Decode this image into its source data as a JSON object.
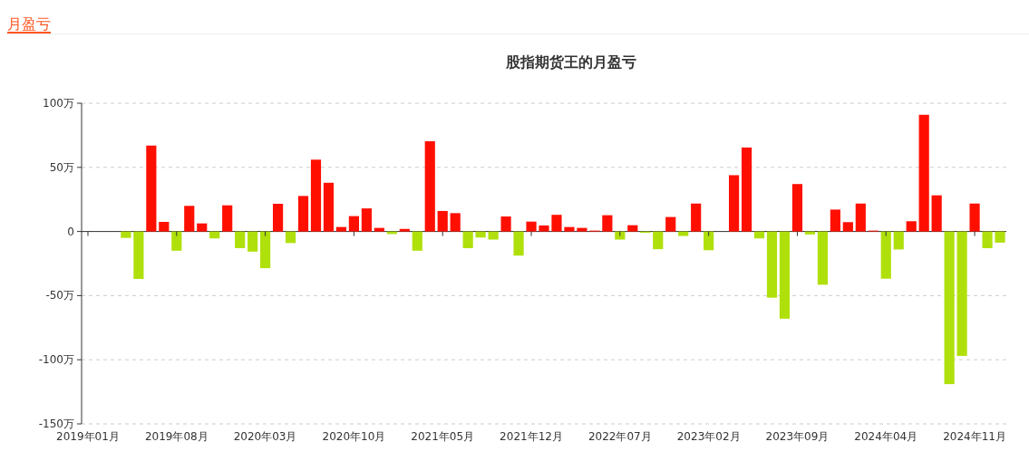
{
  "chart_data": {
    "type": "bar",
    "title": "股指期货王的月盈亏",
    "annotations": [
      "月盈亏"
    ],
    "categories": [
      "2019年01月",
      null,
      null,
      null,
      null,
      null,
      null,
      "2019年08月",
      null,
      null,
      null,
      null,
      null,
      null,
      "2020年03月",
      null,
      null,
      null,
      null,
      null,
      null,
      "2020年10月",
      null,
      null,
      null,
      null,
      null,
      null,
      "2021年05月",
      null,
      null,
      null,
      null,
      null,
      null,
      "2021年12月",
      null,
      null,
      null,
      null,
      null,
      null,
      "2022年07月",
      null,
      null,
      null,
      null,
      null,
      null,
      "2023年02月",
      null,
      null,
      null,
      null,
      null,
      null,
      "2023年09月",
      null,
      null,
      null,
      null,
      null,
      null,
      "2024年04月",
      null,
      null,
      null,
      null,
      null,
      null,
      "2024年11月",
      null,
      null
    ],
    "values": [
      null,
      null,
      null,
      -5,
      -37,
      67,
      7.5,
      -15,
      20,
      6.3,
      -5.4,
      20.4,
      -13,
      -15.7,
      -28.6,
      21.6,
      -9,
      27.7,
      56,
      38,
      3.5,
      12,
      18,
      2.8,
      -2,
      2,
      -15,
      70.4,
      16,
      14.3,
      -13,
      -4.7,
      -6.3,
      11.7,
      -18.8,
      7.7,
      4.7,
      13,
      3.5,
      2.8,
      0.7,
      12.7,
      -6.3,
      4.9,
      -1,
      -13.8,
      11.3,
      -3.5,
      21.8,
      -14.6,
      0,
      43.9,
      65.5,
      -5.4,
      -51.6,
      -68,
      37,
      -2.3,
      -41.5,
      17.1,
      7.3,
      21.8,
      0.7,
      -36.8,
      -14,
      8,
      91,
      28.2,
      -119,
      -97,
      21.8,
      -13,
      -8.7
    ],
    "colors": [
      null,
      null,
      null,
      "#b0e00b",
      "#b0e00b",
      "#ff0f00",
      "#ff0f00",
      "#b0e00b",
      "#ff0f00",
      "#ff0f00",
      "#b0e00b",
      "#ff0f00",
      "#b0e00b",
      "#b0e00b",
      "#b0e00b",
      "#ff0f00",
      "#b0e00b",
      "#ff0f00",
      "#ff0f00",
      "#ff0f00",
      "#ff0f00",
      "#ff0f00",
      "#ff0f00",
      "#ff0f00",
      "#b0e00b",
      "#ff0f00",
      "#b0e00b",
      "#ff0f00",
      "#ff0f00",
      "#ff0f00",
      "#b0e00b",
      "#b0e00b",
      "#b0e00b",
      "#ff0f00",
      "#b0e00b",
      "#ff0f00",
      "#ff0f00",
      "#ff0f00",
      "#ff0f00",
      "#ff0f00",
      "#ff0f00",
      "#ff0f00",
      "#b0e00b",
      "#ff0f00",
      "#b0e00b",
      "#b0e00b",
      "#ff0f00",
      "#b0e00b",
      "#ff0f00",
      "#b0e00b",
      "#ff0f00",
      "#ff0f00",
      "#ff0f00",
      "#b0e00b",
      "#b0e00b",
      "#b0e00b",
      "#ff0f00",
      "#b0e00b",
      "#b0e00b",
      "#ff0f00",
      "#ff0f00",
      "#ff0f00",
      "#ff0f00",
      "#b0e00b",
      "#b0e00b",
      "#ff0f00",
      "#ff0f00",
      "#ff0f00",
      "#b0e00b",
      "#b0e00b",
      "#ff0f00",
      "#b0e00b",
      "#b0e00b"
    ],
    "ylim": [
      -150,
      100
    ],
    "yticks": [
      {
        "value": -150,
        "label": "-150万"
      },
      {
        "value": -100,
        "label": "-100万"
      },
      {
        "value": -50,
        "label": "-50万"
      },
      {
        "value": 0,
        "label": "0"
      },
      {
        "value": 50,
        "label": "50万"
      },
      {
        "value": 100,
        "label": "100万"
      }
    ],
    "grid": "y"
  }
}
